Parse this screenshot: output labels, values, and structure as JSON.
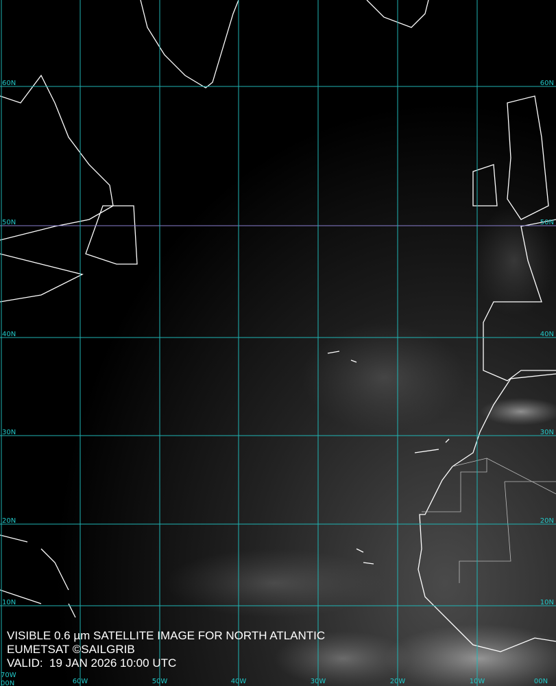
{
  "map": {
    "title": "VISIBLE 0.6 µm SATELLITE IMAGE FOR NORTH ATLANTIC",
    "credit": "EUMETSAT ©SAILGRIB",
    "valid": "VALID:  19 JAN 2026 10:00 UTC",
    "grid_color": "#1fb5b5",
    "coast_color": "#ffffff",
    "latitudes": [
      "60N",
      "50N",
      "40N",
      "30N",
      "20N",
      "10N"
    ],
    "longitudes": [
      "70W",
      "60W",
      "50W",
      "40W",
      "30W",
      "20W",
      "10W",
      "00N"
    ],
    "corner_label": "00N"
  }
}
